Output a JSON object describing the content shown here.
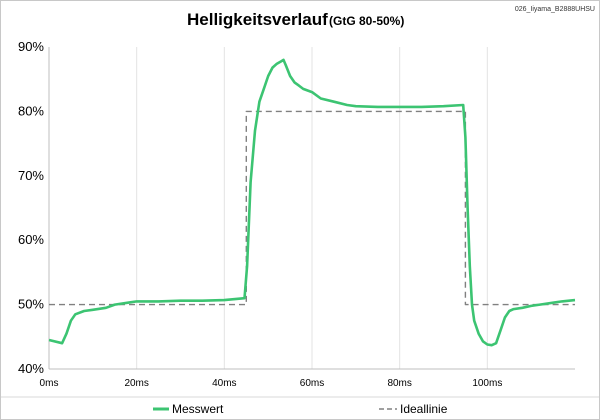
{
  "chart_data": {
    "type": "line",
    "title": "Helligkeitsverlauf",
    "subtitle": "(GtG 80-50%)",
    "watermark": "026_Iiyama_B2888UHSU",
    "xlabel": "",
    "ylabel": "",
    "xlim": [
      0,
      120
    ],
    "ylim": [
      40,
      90
    ],
    "x_tick_values": [
      0,
      20,
      40,
      60,
      80,
      100
    ],
    "x_tick_labels": [
      "0ms",
      "20ms",
      "40ms",
      "60ms",
      "80ms",
      "100ms"
    ],
    "y_tick_values": [
      40,
      50,
      60,
      70,
      80,
      90
    ],
    "y_tick_labels": [
      "40%",
      "50%",
      "60%",
      "70%",
      "80%",
      "90%"
    ],
    "grid": {
      "vertical": true,
      "horizontal": false
    },
    "legend_position": "bottom",
    "series": [
      {
        "name": "Messwert",
        "color": "#3cc472",
        "style": "solid",
        "x": [
          0,
          3,
          4,
          5,
          6,
          8,
          10,
          13,
          15,
          18,
          20,
          25,
          30,
          35,
          40,
          44.6,
          45.2,
          46,
          47,
          48,
          49,
          50,
          51,
          52,
          53,
          53.5,
          54,
          55,
          56,
          57,
          58,
          60,
          62,
          65,
          68,
          70,
          75,
          80,
          85,
          90,
          94.5,
          95,
          95.5,
          96,
          96.5,
          97,
          98,
          99,
          100,
          101,
          102,
          103,
          104,
          105,
          106,
          108,
          110,
          112,
          115,
          117,
          120
        ],
        "values": [
          44.5,
          44.0,
          45.5,
          47.5,
          48.5,
          49.0,
          49.2,
          49.5,
          50.0,
          50.3,
          50.5,
          50.5,
          50.6,
          50.6,
          50.7,
          51.0,
          56.0,
          69.0,
          77.0,
          81.5,
          83.5,
          85.5,
          86.8,
          87.4,
          87.8,
          88.0,
          87.2,
          85.5,
          84.5,
          84.0,
          83.5,
          83.0,
          82.0,
          81.5,
          81.0,
          80.8,
          80.7,
          80.7,
          80.7,
          80.8,
          81.0,
          76.0,
          65.0,
          56.0,
          50.0,
          47.5,
          45.5,
          44.3,
          43.8,
          43.7,
          44.0,
          46.0,
          48.0,
          49.0,
          49.3,
          49.5,
          49.8,
          50.0,
          50.3,
          50.5,
          50.7
        ]
      },
      {
        "name": "Ideallinie",
        "color": "#808080",
        "style": "dashed",
        "x": [
          0,
          45,
          45,
          95,
          95,
          120
        ],
        "values": [
          50,
          50,
          80,
          80,
          50,
          50
        ]
      }
    ]
  }
}
